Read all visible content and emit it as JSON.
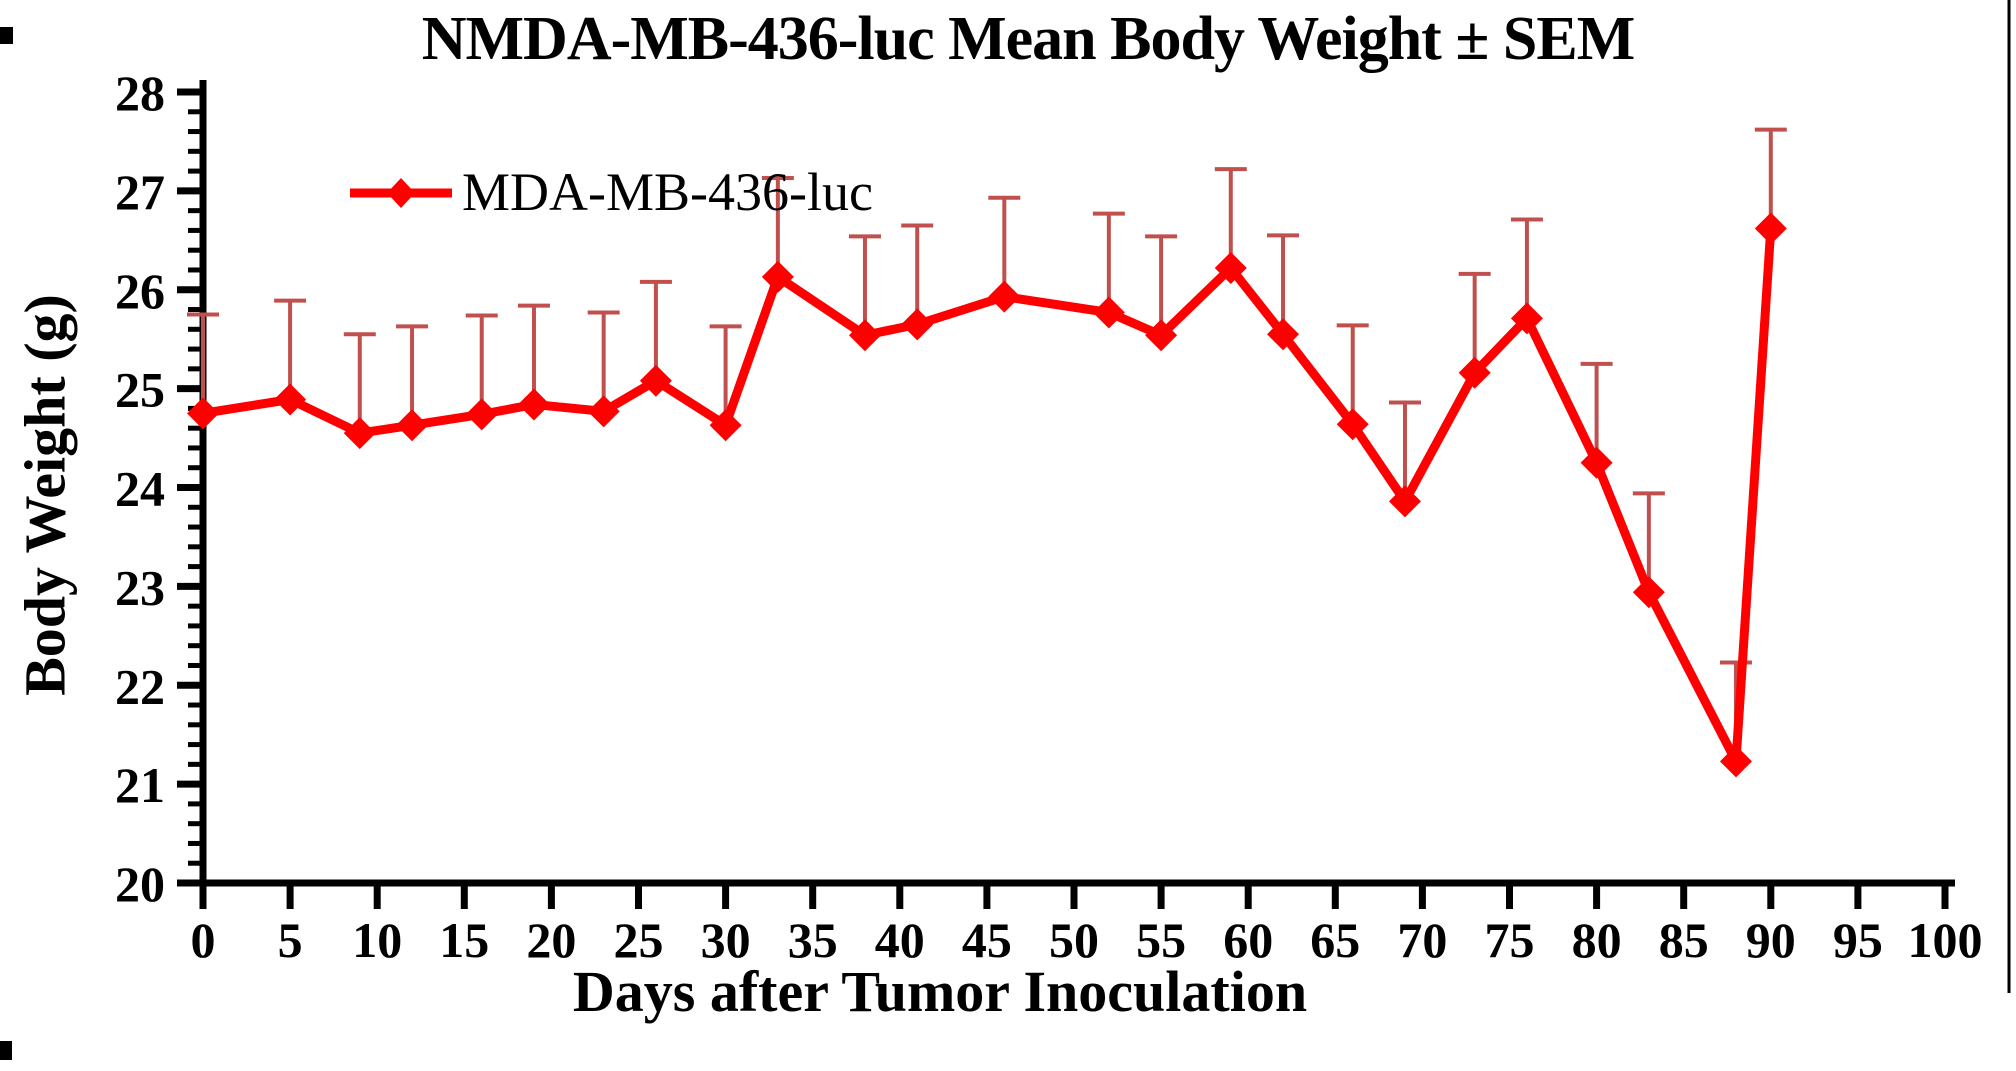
{
  "page": {
    "background": "#ffffff"
  },
  "chart_data": {
    "type": "line",
    "title": "NMDA-MB-436-luc Mean Body Weight ± SEM",
    "xlabel": "Days after Tumor Inoculation",
    "ylabel": "Body Weight (g)",
    "legend": {
      "label": "MDA-MB-436-luc",
      "position": "inside-top-left"
    },
    "error_bars": "upper-only, +1 SEM, capped",
    "grid": false,
    "xlim": [
      0,
      100
    ],
    "ylim": [
      20,
      28
    ],
    "x_ticks": [
      0,
      5,
      10,
      15,
      20,
      25,
      30,
      35,
      40,
      45,
      50,
      55,
      60,
      65,
      70,
      75,
      80,
      85,
      90,
      95,
      100
    ],
    "y_ticks": [
      20,
      21,
      22,
      23,
      24,
      25,
      26,
      27,
      28
    ],
    "y_minor_tick_step": 0.2,
    "series": [
      {
        "name": "MDA-MB-436-luc",
        "marker": "diamond",
        "line_color": "#ff0000",
        "marker_color": "#ff0000",
        "error_bar_color": "#c0504d",
        "x": [
          0,
          5,
          9,
          12,
          16,
          19,
          23,
          26,
          30,
          33,
          38,
          41,
          46,
          52,
          55,
          59,
          62,
          66,
          69,
          73,
          76,
          80,
          83,
          88,
          90
        ],
        "y": [
          24.75,
          24.89,
          24.55,
          24.63,
          24.74,
          24.84,
          24.77,
          25.08,
          24.63,
          26.13,
          25.54,
          25.65,
          25.93,
          25.77,
          25.54,
          26.22,
          25.55,
          24.64,
          23.86,
          25.16,
          25.71,
          24.25,
          22.94,
          21.23,
          26.62
        ],
        "sem_upper": [
          1.0,
          1.0,
          1.0,
          1.0,
          1.0,
          1.0,
          1.0,
          1.0,
          1.0,
          1.0,
          1.0,
          1.0,
          1.0,
          1.0,
          1.0,
          1.0,
          1.0,
          1.0,
          1.0,
          1.0,
          1.0,
          1.0,
          1.0,
          1.0,
          1.0
        ]
      }
    ],
    "axis_color": "#000000"
  }
}
